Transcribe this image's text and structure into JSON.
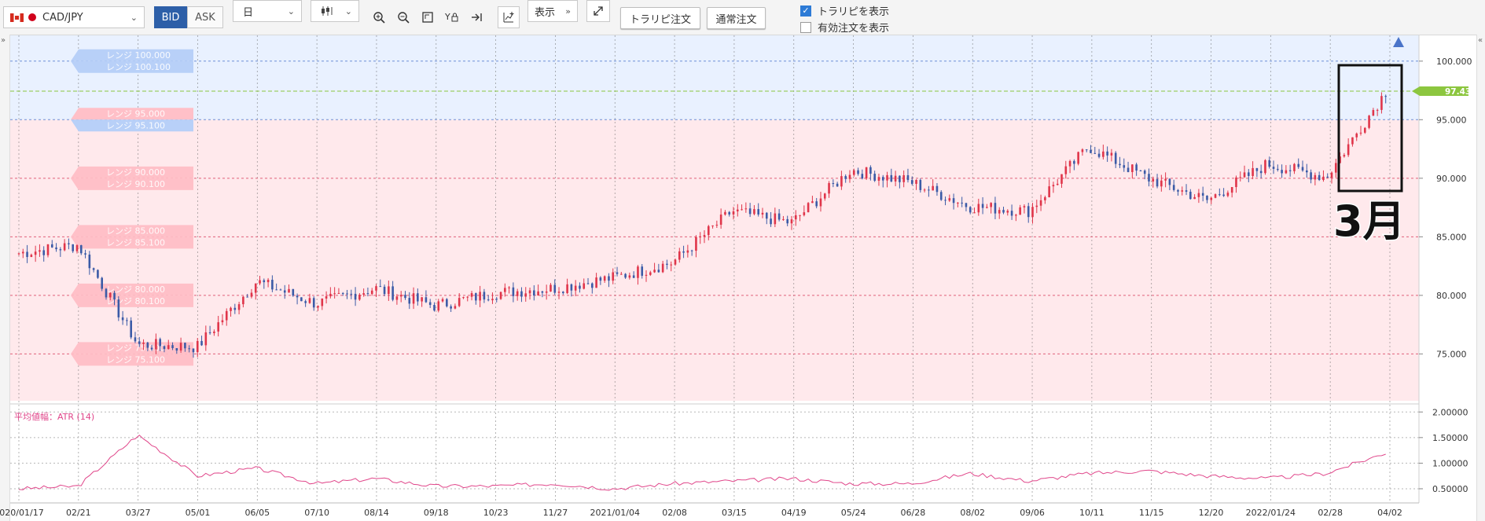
{
  "toolbar": {
    "pair": "CAD/JPY",
    "bid": "BID",
    "ask": "ASK",
    "period": "日",
    "show_label": "表示",
    "trarepi_btn": "トラリピ注文",
    "normal_btn": "通常注文",
    "check_trarepi": "トラリピを表示",
    "check_orders": "有効注文を表示"
  },
  "annotation": {
    "label": "3月"
  },
  "range_labels": [
    {
      "lines": [
        "レンジ 100.000",
        "レンジ 100.100"
      ],
      "side": "buy"
    },
    {
      "lines": [
        "レンジ 95.000",
        "レンジ 95.100"
      ],
      "side": "mixed"
    },
    {
      "lines": [
        "レンジ 90.000",
        "レンジ 90.100"
      ],
      "side": "sell"
    },
    {
      "lines": [
        "レンジ 85.000",
        "レンジ 85.100"
      ],
      "side": "sell"
    },
    {
      "lines": [
        "レンジ 80.000",
        "レンジ 80.100"
      ],
      "side": "sell"
    },
    {
      "lines": [
        "レンジ 75.000",
        "レンジ 75.100"
      ],
      "side": "sell"
    }
  ],
  "chart_data": [
    {
      "type": "line",
      "subtype": "candlestick",
      "title": "CAD/JPY",
      "x": [
        "2020/01/17",
        "02/21",
        "03/27",
        "05/01",
        "06/05",
        "07/10",
        "08/14",
        "09/18",
        "10/23",
        "11/27",
        "2021/01/04",
        "02/08",
        "03/15",
        "04/19",
        "05/24",
        "06/28",
        "08/02",
        "09/06",
        "10/11",
        "11/15",
        "12/20",
        "2022/01/24",
        "02/28",
        "04/02"
      ],
      "close": [
        83.6,
        84.3,
        75.8,
        75.6,
        81.2,
        79.3,
        80.6,
        79.1,
        80.2,
        80.6,
        81.5,
        82.8,
        87.2,
        86.2,
        90.7,
        89.7,
        87.6,
        87.2,
        92.7,
        90.0,
        88.1,
        91.2,
        90.1,
        97.4
      ],
      "current_price": 97.437,
      "current_price_label": "97.437",
      "ylim": [
        71.0,
        102.2
      ],
      "y_ticks": [
        "100.000",
        "95.000",
        "90.000",
        "85.000",
        "80.000",
        "75.000"
      ],
      "range_levels": [
        100,
        95,
        90,
        85,
        80,
        75
      ],
      "colors": {
        "up": "#e0354a",
        "down": "#3b5ba7",
        "buy_zone": "#e9f1ff",
        "sell_zone": "#ffe9ec",
        "price": "#8cc63f"
      }
    },
    {
      "type": "line",
      "title": "平均値幅：ATR (14)",
      "x": [
        "2020/01/17",
        "02/21",
        "03/27",
        "05/01",
        "06/05",
        "07/10",
        "08/14",
        "09/18",
        "10/23",
        "11/27",
        "2021/01/04",
        "02/08",
        "03/15",
        "04/19",
        "05/24",
        "06/28",
        "08/02",
        "09/06",
        "10/11",
        "11/15",
        "12/20",
        "2022/01/24",
        "02/28",
        "04/02"
      ],
      "values": [
        0.5,
        0.55,
        1.55,
        0.75,
        0.9,
        0.6,
        0.7,
        0.55,
        0.55,
        0.6,
        0.5,
        0.6,
        0.65,
        0.7,
        0.6,
        0.6,
        0.8,
        0.65,
        0.8,
        0.85,
        0.75,
        0.7,
        0.8,
        1.2
      ],
      "ylim": [
        0.3,
        2.05
      ],
      "y_ticks": [
        "2.00000",
        "1.50000",
        "1.00000",
        "0.50000"
      ],
      "color": "#e0468a"
    }
  ]
}
